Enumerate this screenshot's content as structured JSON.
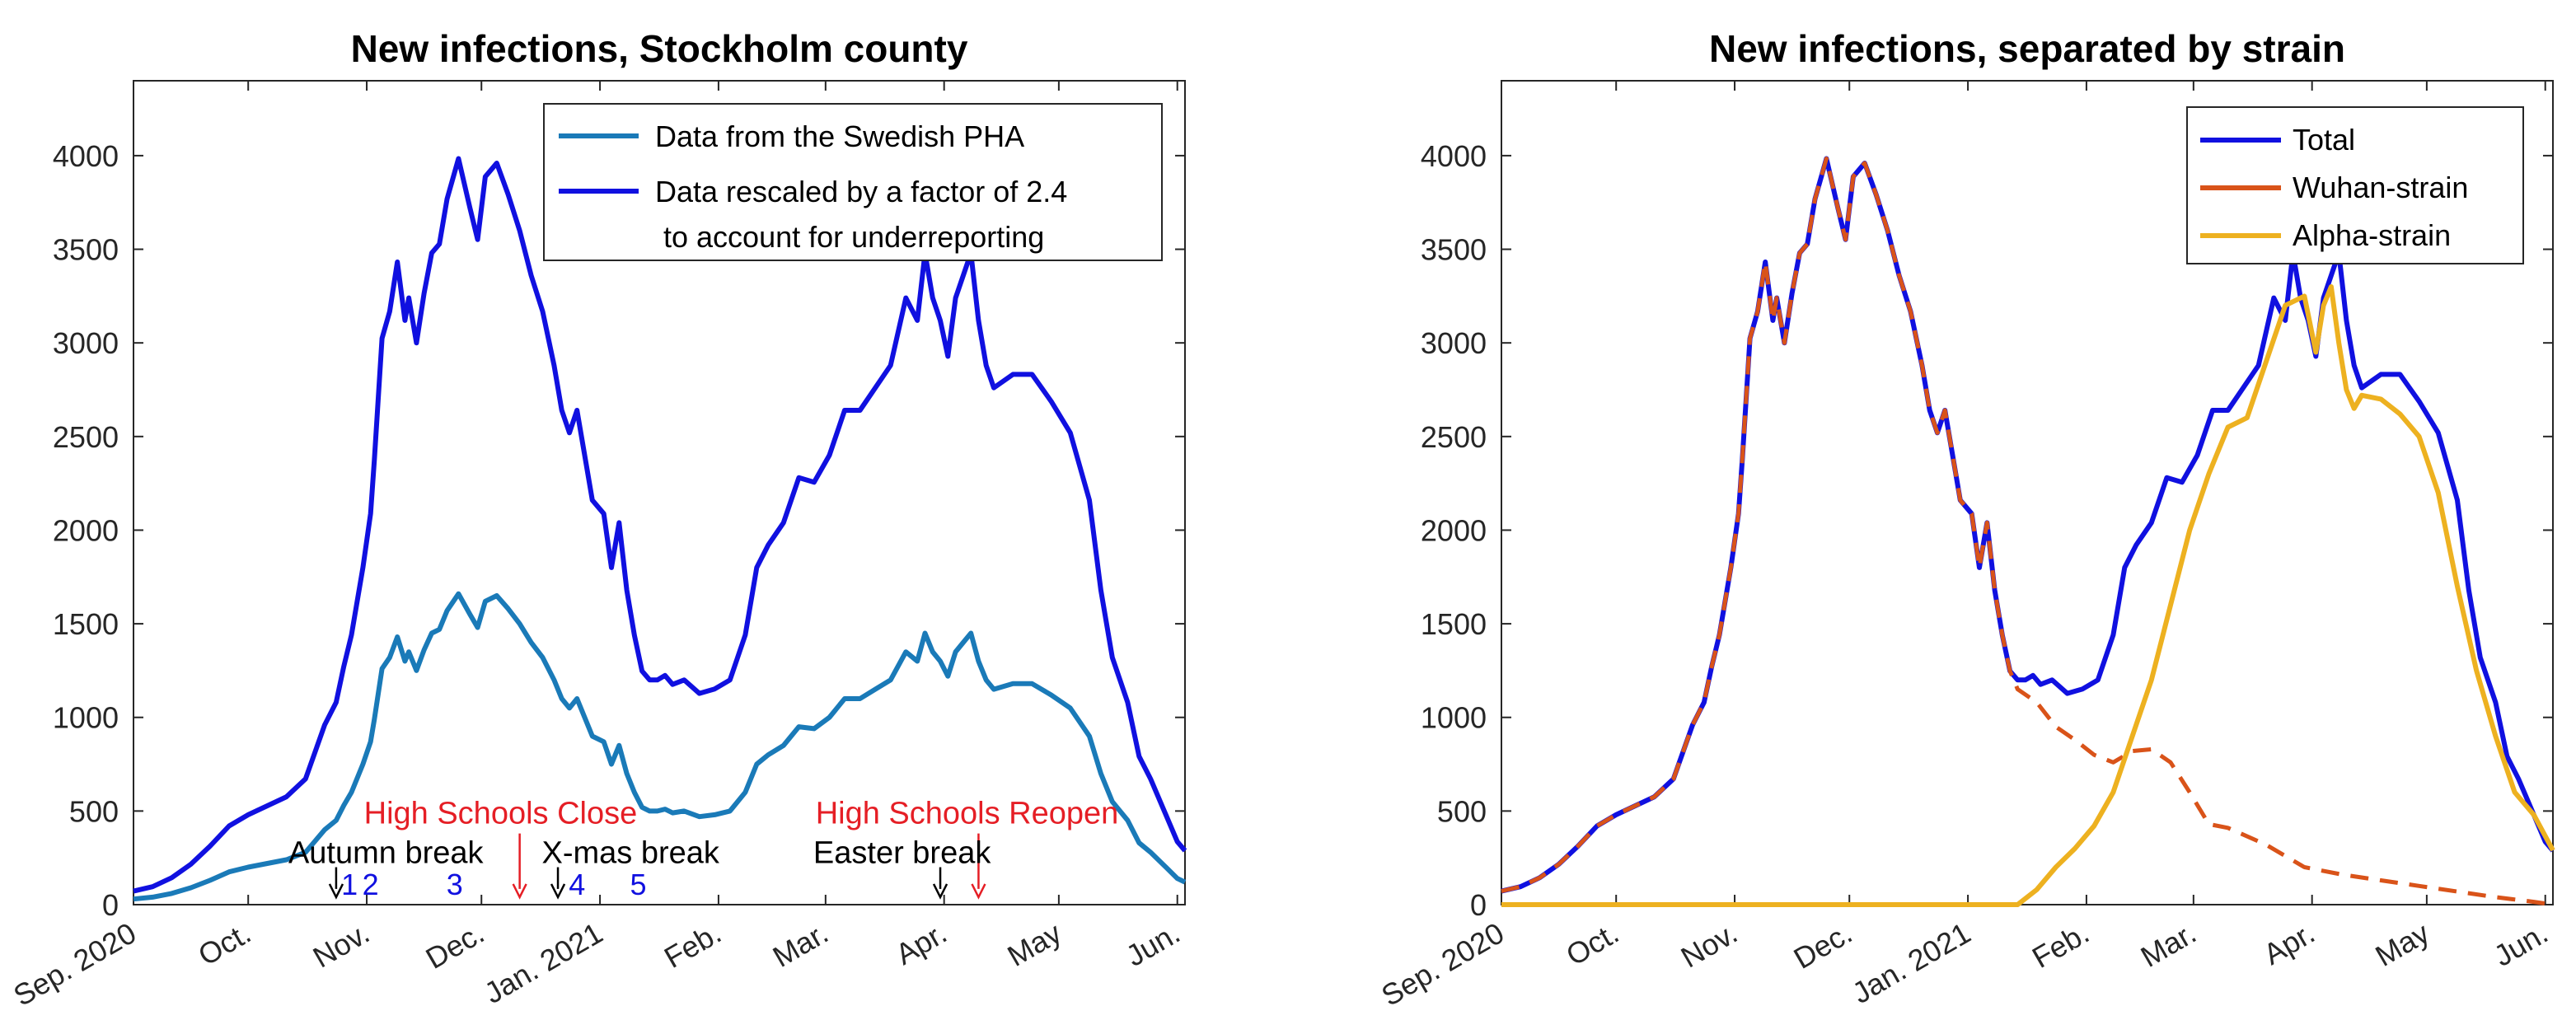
{
  "chart_data": [
    {
      "type": "line",
      "title": "New infections, Stockholm county",
      "xlabel": "",
      "ylabel": "",
      "xlim": [
        0,
        275
      ],
      "ylim": [
        0,
        4400
      ],
      "yticks": [
        0,
        500,
        1000,
        1500,
        2000,
        2500,
        3000,
        3500,
        4000
      ],
      "xticks": [
        {
          "day": 0,
          "label": "Sep. 2020"
        },
        {
          "day": 30,
          "label": "Oct."
        },
        {
          "day": 61,
          "label": "Nov."
        },
        {
          "day": 91,
          "label": "Dec."
        },
        {
          "day": 122,
          "label": "Jan. 2021"
        },
        {
          "day": 153,
          "label": "Feb."
        },
        {
          "day": 181,
          "label": "Mar."
        },
        {
          "day": 212,
          "label": "Apr."
        },
        {
          "day": 242,
          "label": "May"
        },
        {
          "day": 273,
          "label": "Jun."
        }
      ],
      "legend": {
        "position": "top-right",
        "entries": [
          {
            "label": "Data from the Swedish PHA",
            "color": "#1a7ab8"
          },
          {
            "label": "Data rescaled by a factor of 2.4",
            "label2": "to account for underreporting",
            "color": "#1010e0"
          }
        ]
      },
      "series": [
        {
          "name": "Data from the Swedish PHA",
          "color": "#1a7ab8",
          "x": [
            0,
            5,
            10,
            15,
            20,
            25,
            30,
            35,
            40,
            45,
            50,
            53,
            55,
            57,
            60,
            62,
            63,
            65,
            67,
            69,
            71,
            72,
            74,
            76,
            78,
            80,
            82,
            85,
            88,
            90,
            92,
            95,
            98,
            101,
            104,
            107,
            110,
            112,
            114,
            116,
            118,
            120,
            123,
            125,
            127,
            129,
            131,
            133,
            135,
            137,
            139,
            141,
            144,
            148,
            152,
            156,
            160,
            163,
            166,
            170,
            174,
            178,
            182,
            186,
            190,
            194,
            198,
            202,
            205,
            207,
            209,
            211,
            213,
            215,
            217,
            219,
            221,
            223,
            225,
            230,
            235,
            240,
            245,
            250,
            253,
            256,
            260,
            263,
            266,
            270,
            273,
            275
          ],
          "y": [
            30,
            40,
            60,
            90,
            130,
            175,
            200,
            220,
            240,
            280,
            400,
            450,
            530,
            600,
            750,
            870,
            990,
            1260,
            1320,
            1430,
            1300,
            1350,
            1250,
            1360,
            1450,
            1470,
            1570,
            1660,
            1550,
            1480,
            1620,
            1650,
            1580,
            1500,
            1400,
            1320,
            1200,
            1100,
            1050,
            1100,
            1000,
            900,
            870,
            750,
            850,
            700,
            600,
            520,
            500,
            500,
            510,
            490,
            500,
            470,
            480,
            500,
            600,
            750,
            800,
            850,
            950,
            940,
            1000,
            1100,
            1100,
            1150,
            1200,
            1350,
            1300,
            1450,
            1350,
            1300,
            1220,
            1350,
            1400,
            1450,
            1300,
            1200,
            1150,
            1180,
            1180,
            1120,
            1050,
            900,
            700,
            550,
            450,
            330,
            280,
            200,
            140,
            120
          ]
        },
        {
          "name": "Data rescaled by a factor of 2.4 to account for underreporting",
          "color": "#1010e0",
          "x": [
            0,
            5,
            10,
            15,
            20,
            25,
            30,
            35,
            40,
            45,
            50,
            53,
            55,
            57,
            60,
            62,
            63,
            65,
            67,
            69,
            71,
            72,
            74,
            76,
            78,
            80,
            82,
            85,
            88,
            90,
            92,
            95,
            98,
            101,
            104,
            107,
            110,
            112,
            114,
            116,
            118,
            120,
            123,
            125,
            127,
            129,
            131,
            133,
            135,
            137,
            139,
            141,
            144,
            148,
            152,
            156,
            160,
            163,
            166,
            170,
            174,
            178,
            182,
            186,
            190,
            194,
            198,
            202,
            205,
            207,
            209,
            211,
            213,
            215,
            217,
            219,
            221,
            223,
            225,
            230,
            235,
            240,
            245,
            250,
            253,
            256,
            260,
            263,
            266,
            270,
            273,
            275
          ],
          "y": [
            72,
            96,
            144,
            216,
            312,
            420,
            480,
            528,
            576,
            672,
            960,
            1080,
            1272,
            1440,
            1800,
            2088,
            2376,
            3024,
            3168,
            3432,
            3120,
            3240,
            3000,
            3264,
            3480,
            3528,
            3768,
            3984,
            3720,
            3552,
            3888,
            3960,
            3792,
            3600,
            3360,
            3168,
            2880,
            2640,
            2520,
            2640,
            2400,
            2160,
            2088,
            1800,
            2040,
            1680,
            1440,
            1248,
            1200,
            1200,
            1224,
            1176,
            1200,
            1128,
            1152,
            1200,
            1440,
            1800,
            1920,
            2040,
            2280,
            2256,
            2400,
            2640,
            2640,
            2760,
            2880,
            3240,
            3120,
            3480,
            3240,
            3120,
            2928,
            3240,
            3360,
            3480,
            3120,
            2880,
            2760,
            2832,
            2832,
            2688,
            2520,
            2160,
            1680,
            1320,
            1080,
            792,
            672,
            480,
            336,
            288
          ]
        }
      ],
      "annotations": [
        {
          "text": "High Schools Close",
          "day": 96,
          "y": 490,
          "color": "#e51e25"
        },
        {
          "text": "High Schools Reopen",
          "day": 218,
          "y": 490,
          "color": "#e51e25"
        },
        {
          "text": "Autumn break",
          "day": 66,
          "y": 280,
          "color": "#000000"
        },
        {
          "text": "X-mas break",
          "day": 130,
          "y": 280,
          "color": "#000000"
        },
        {
          "text": "Easter break",
          "day": 201,
          "y": 280,
          "color": "#000000"
        },
        {
          "text": "1",
          "day": 56.5,
          "y": 110,
          "color": "#1010e0"
        },
        {
          "text": "2",
          "day": 62,
          "y": 110,
          "color": "#1010e0"
        },
        {
          "text": "3",
          "day": 84,
          "y": 110,
          "color": "#1010e0"
        },
        {
          "text": "4",
          "day": 116,
          "y": 110,
          "color": "#1010e0"
        },
        {
          "text": "5",
          "day": 132,
          "y": 110,
          "color": "#1010e0"
        }
      ],
      "arrows": [
        {
          "day": 53,
          "y_top": 200,
          "y_bottom": 40,
          "color": "#000000",
          "kind": "autumn-break"
        },
        {
          "day": 101,
          "y_top": 380,
          "y_bottom": 40,
          "color": "#e51e25",
          "kind": "schools-close"
        },
        {
          "day": 111,
          "y_top": 200,
          "y_bottom": 40,
          "color": "#000000",
          "kind": "xmas-break"
        },
        {
          "day": 211,
          "y_top": 200,
          "y_bottom": 40,
          "color": "#000000",
          "kind": "easter-break"
        },
        {
          "day": 221,
          "y_top": 380,
          "y_bottom": 40,
          "color": "#e51e25",
          "kind": "schools-reopen"
        }
      ]
    },
    {
      "type": "line",
      "title": "New infections, separated by strain",
      "xlabel": "",
      "ylabel": "",
      "xlim": [
        0,
        275
      ],
      "ylim": [
        0,
        4400
      ],
      "yticks": [
        0,
        500,
        1000,
        1500,
        2000,
        2500,
        3000,
        3500,
        4000
      ],
      "xticks": [
        {
          "day": 0,
          "label": "Sep. 2020"
        },
        {
          "day": 30,
          "label": "Oct."
        },
        {
          "day": 61,
          "label": "Nov."
        },
        {
          "day": 91,
          "label": "Dec."
        },
        {
          "day": 122,
          "label": "Jan. 2021"
        },
        {
          "day": 153,
          "label": "Feb."
        },
        {
          "day": 181,
          "label": "Mar."
        },
        {
          "day": 212,
          "label": "Apr."
        },
        {
          "day": 242,
          "label": "May"
        },
        {
          "day": 273,
          "label": "Jun."
        }
      ],
      "legend": {
        "position": "top-right",
        "entries": [
          {
            "label": "Total",
            "color": "#1010e0"
          },
          {
            "label": "Wuhan-strain",
            "color": "#d95319"
          },
          {
            "label": "Alpha-strain",
            "color": "#edb120"
          }
        ]
      },
      "series": [
        {
          "name": "Total",
          "color": "#1010e0",
          "x": [
            0,
            5,
            10,
            15,
            20,
            25,
            30,
            35,
            40,
            45,
            50,
            53,
            55,
            57,
            60,
            62,
            63,
            65,
            67,
            69,
            71,
            72,
            74,
            76,
            78,
            80,
            82,
            85,
            88,
            90,
            92,
            95,
            98,
            101,
            104,
            107,
            110,
            112,
            114,
            116,
            118,
            120,
            123,
            125,
            127,
            129,
            131,
            133,
            135,
            137,
            139,
            141,
            144,
            148,
            152,
            156,
            160,
            163,
            166,
            170,
            174,
            178,
            182,
            186,
            190,
            194,
            198,
            202,
            205,
            207,
            209,
            211,
            213,
            215,
            217,
            219,
            221,
            223,
            225,
            230,
            235,
            240,
            245,
            250,
            253,
            256,
            260,
            263,
            266,
            270,
            273,
            275
          ],
          "y": [
            72,
            96,
            144,
            216,
            312,
            420,
            480,
            528,
            576,
            672,
            960,
            1080,
            1272,
            1440,
            1800,
            2088,
            2376,
            3024,
            3168,
            3432,
            3120,
            3240,
            3000,
            3264,
            3480,
            3528,
            3768,
            3984,
            3720,
            3552,
            3888,
            3960,
            3792,
            3600,
            3360,
            3168,
            2880,
            2640,
            2520,
            2640,
            2400,
            2160,
            2088,
            1800,
            2040,
            1680,
            1440,
            1248,
            1200,
            1200,
            1224,
            1176,
            1200,
            1128,
            1152,
            1200,
            1440,
            1800,
            1920,
            2040,
            2280,
            2256,
            2400,
            2640,
            2640,
            2760,
            2880,
            3240,
            3120,
            3480,
            3240,
            3120,
            2928,
            3240,
            3360,
            3480,
            3120,
            2880,
            2760,
            2832,
            2832,
            2688,
            2520,
            2160,
            1680,
            1320,
            1080,
            792,
            672,
            480,
            336,
            288
          ]
        },
        {
          "name": "Wuhan-strain",
          "color": "#d95319",
          "x": [
            0,
            5,
            10,
            15,
            20,
            25,
            30,
            35,
            40,
            45,
            50,
            53,
            55,
            57,
            60,
            62,
            63,
            65,
            67,
            69,
            71,
            72,
            74,
            76,
            78,
            80,
            82,
            85,
            88,
            90,
            92,
            95,
            98,
            101,
            104,
            107,
            110,
            112,
            114,
            116,
            118,
            120,
            123,
            125,
            127,
            129,
            131,
            133,
            135,
            140,
            145,
            150,
            155,
            160,
            165,
            170,
            175,
            180,
            185,
            190,
            200,
            210,
            220,
            230,
            240,
            250,
            260,
            270,
            275
          ],
          "y": [
            72,
            96,
            144,
            216,
            312,
            420,
            480,
            528,
            576,
            672,
            960,
            1080,
            1272,
            1440,
            1800,
            2088,
            2376,
            3024,
            3168,
            3432,
            3120,
            3240,
            3000,
            3264,
            3480,
            3528,
            3768,
            3984,
            3720,
            3552,
            3888,
            3960,
            3792,
            3600,
            3360,
            3168,
            2880,
            2640,
            2520,
            2640,
            2400,
            2160,
            2088,
            1800,
            2040,
            1680,
            1440,
            1248,
            1150,
            1080,
            950,
            880,
            800,
            760,
            820,
            830,
            760,
            600,
            430,
            410,
            320,
            200,
            160,
            130,
            100,
            70,
            40,
            15,
            0
          ]
        },
        {
          "name": "Alpha-strain",
          "color": "#edb120",
          "x": [
            0,
            60,
            120,
            135,
            140,
            145,
            150,
            155,
            160,
            165,
            170,
            175,
            180,
            185,
            190,
            195,
            200,
            205,
            210,
            213,
            215,
            217,
            219,
            221,
            223,
            225,
            230,
            235,
            240,
            245,
            250,
            255,
            260,
            265,
            270,
            275
          ],
          "y": [
            0,
            0,
            0,
            0,
            80,
            200,
            300,
            420,
            600,
            900,
            1200,
            1600,
            2000,
            2300,
            2550,
            2600,
            2900,
            3200,
            3250,
            2950,
            3200,
            3300,
            3000,
            2750,
            2650,
            2720,
            2700,
            2620,
            2500,
            2200,
            1700,
            1250,
            900,
            600,
            480,
            290
          ]
        }
      ]
    }
  ]
}
